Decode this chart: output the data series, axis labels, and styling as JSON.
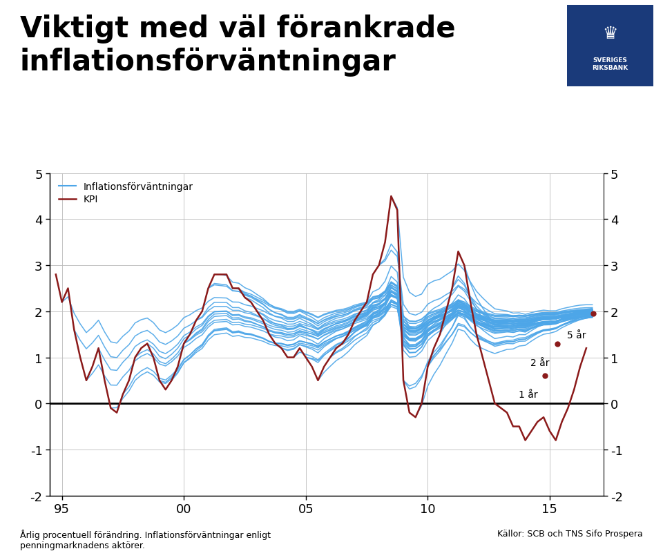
{
  "title_line1": "Viktigt med väl förankrade",
  "title_line2": "inflationsförväntningar",
  "xlim": [
    1994.5,
    2017.2
  ],
  "ylim": [
    -2,
    5
  ],
  "yticks": [
    -2,
    -1,
    0,
    1,
    2,
    3,
    4,
    5
  ],
  "xticks": [
    1995,
    2000,
    2005,
    2010,
    2015
  ],
  "xticklabels": [
    "95",
    "00",
    "05",
    "10",
    "15"
  ],
  "legend_label_blue": "Inflationsförväntningar",
  "legend_label_red": "KPI",
  "annotation_5ar": "5 år",
  "annotation_2ar": "2 år",
  "annotation_1ar": "1 år",
  "footnote_left": "Årlig procentuell förändring. Inflationsförväntningar enligt\npenningmarknadens aktörer.",
  "footnote_right": "Källor: SCB och TNS Sifo Prospera",
  "blue_color": "#4DA6E8",
  "red_color": "#8B1A1A",
  "background_color": "#FFFFFF",
  "title_fontsize": 30,
  "kpi_data_x": [
    1994.75,
    1995.0,
    1995.25,
    1995.5,
    1995.75,
    1996.0,
    1996.25,
    1996.5,
    1996.75,
    1997.0,
    1997.25,
    1997.5,
    1997.75,
    1998.0,
    1998.25,
    1998.5,
    1998.75,
    1999.0,
    1999.25,
    1999.5,
    1999.75,
    2000.0,
    2000.25,
    2000.5,
    2000.75,
    2001.0,
    2001.25,
    2001.5,
    2001.75,
    2002.0,
    2002.25,
    2002.5,
    2002.75,
    2003.0,
    2003.25,
    2003.5,
    2003.75,
    2004.0,
    2004.25,
    2004.5,
    2004.75,
    2005.0,
    2005.25,
    2005.5,
    2005.75,
    2006.0,
    2006.25,
    2006.5,
    2006.75,
    2007.0,
    2007.25,
    2007.5,
    2007.75,
    2008.0,
    2008.25,
    2008.5,
    2008.75,
    2009.0,
    2009.25,
    2009.5,
    2009.75,
    2010.0,
    2010.25,
    2010.5,
    2010.75,
    2011.0,
    2011.25,
    2011.5,
    2011.75,
    2012.0,
    2012.25,
    2012.5,
    2012.75,
    2013.0,
    2013.25,
    2013.5,
    2013.75,
    2014.0,
    2014.25,
    2014.5,
    2014.75,
    2015.0,
    2015.25,
    2015.5,
    2015.75,
    2016.0,
    2016.25,
    2016.5
  ],
  "kpi_data_y": [
    2.8,
    2.2,
    2.5,
    1.6,
    1.0,
    0.5,
    0.8,
    1.2,
    0.5,
    -0.1,
    -0.2,
    0.2,
    0.5,
    1.0,
    1.2,
    1.3,
    1.0,
    0.5,
    0.3,
    0.5,
    0.8,
    1.3,
    1.5,
    1.8,
    2.0,
    2.5,
    2.8,
    2.8,
    2.8,
    2.5,
    2.5,
    2.3,
    2.2,
    2.0,
    1.8,
    1.5,
    1.3,
    1.2,
    1.0,
    1.0,
    1.2,
    1.0,
    0.8,
    0.5,
    0.8,
    1.0,
    1.2,
    1.3,
    1.5,
    1.8,
    2.0,
    2.2,
    2.8,
    3.0,
    3.5,
    4.5,
    4.2,
    0.5,
    -0.2,
    -0.3,
    0.0,
    0.8,
    1.2,
    1.5,
    2.0,
    2.5,
    3.3,
    3.0,
    2.2,
    1.5,
    1.0,
    0.5,
    0.0,
    -0.1,
    -0.2,
    -0.5,
    -0.5,
    -0.8,
    -0.6,
    -0.4,
    -0.3,
    -0.6,
    -0.8,
    -0.4,
    -0.1,
    0.3,
    0.8,
    1.2
  ],
  "dot_5ar_x": 2016.8,
  "dot_5ar_y": 1.95,
  "dot_2ar_x": 2015.3,
  "dot_2ar_y": 1.3,
  "dot_1ar_x": 2014.8,
  "dot_1ar_y": 0.6
}
